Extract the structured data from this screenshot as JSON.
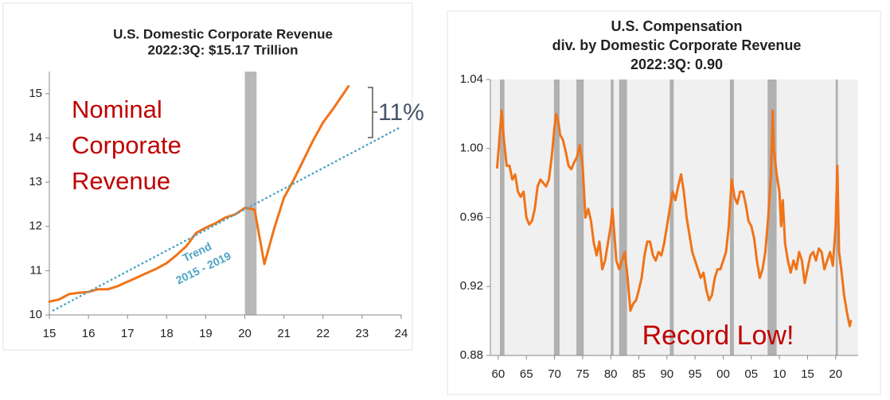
{
  "chart_data": [
    {
      "type": "line",
      "title": [
        "U.S. Domestic Corporate Revenue",
        "2022:3Q:  $15.17  Trillion"
      ],
      "annotations": [
        {
          "lines": [
            "Nominal",
            "Corporate",
            "Revenue"
          ]
        },
        {
          "lines": [
            "11%"
          ]
        },
        {
          "lines": [
            "Trend",
            "2015 - 2019"
          ]
        }
      ],
      "xlim": [
        15,
        24
      ],
      "xticks": [
        15,
        16,
        17,
        18,
        19,
        20,
        21,
        22,
        23,
        24
      ],
      "ylim": [
        10,
        15.5
      ],
      "yticks": [
        10,
        11,
        12,
        13,
        14,
        15
      ],
      "shading": [
        [
          20.0,
          20.3
        ]
      ],
      "shading_color": "#b8b8b8",
      "series": [
        {
          "color": "#f07318",
          "style": "solid",
          "x": [
            15,
            15.25,
            15.5,
            15.75,
            16,
            16.25,
            16.5,
            16.75,
            17,
            17.25,
            17.5,
            17.75,
            18,
            18.25,
            18.5,
            18.75,
            19,
            19.25,
            19.5,
            19.75,
            20,
            20.25,
            20.5,
            20.75,
            21,
            21.25,
            21.5,
            21.75,
            22,
            22.25,
            22.5,
            22.65
          ],
          "values": [
            10.3,
            10.35,
            10.47,
            10.5,
            10.52,
            10.58,
            10.58,
            10.65,
            10.75,
            10.85,
            10.95,
            11.05,
            11.17,
            11.35,
            11.55,
            11.85,
            11.97,
            12.07,
            12.2,
            12.27,
            12.42,
            12.38,
            11.15,
            11.95,
            12.65,
            13.05,
            13.5,
            13.95,
            14.35,
            14.65,
            14.97,
            15.17
          ]
        },
        {
          "color": "#4ba3c3",
          "style": "dotted",
          "x": [
            15.1,
            24
          ],
          "values": [
            10.1,
            14.25
          ]
        }
      ]
    },
    {
      "type": "line",
      "title": [
        "U.S. Compensation",
        "div. by Domestic Corporate Revenue",
        "2022:3Q: 0.90"
      ],
      "annotations": [
        {
          "lines": [
            "Record Low!"
          ]
        }
      ],
      "background": "#f0f0f0",
      "xlim": [
        1958.6,
        2024
      ],
      "xticks": [
        {
          "value": 1960,
          "label": "60"
        },
        {
          "value": 1965,
          "label": "65"
        },
        {
          "value": 1970,
          "label": "70"
        },
        {
          "value": 1975,
          "label": "75"
        },
        {
          "value": 1980,
          "label": "80"
        },
        {
          "value": 1985,
          "label": "85"
        },
        {
          "value": 1990,
          "label": "90"
        },
        {
          "value": 1995,
          "label": "95"
        },
        {
          "value": 2000,
          "label": "00"
        },
        {
          "value": 2005,
          "label": "05"
        },
        {
          "value": 2010,
          "label": "10"
        },
        {
          "value": 2015,
          "label": "15"
        },
        {
          "value": 2020,
          "label": "20"
        }
      ],
      "ylim": [
        0.88,
        1.04
      ],
      "yticks": [
        0.88,
        0.92,
        0.96,
        {
          "value": 1.0,
          "label": "1.00"
        },
        1.04
      ],
      "shading": [
        [
          1960.3,
          1961.1
        ],
        [
          1969.9,
          1970.9
        ],
        [
          1973.9,
          1975.2
        ],
        [
          1980.0,
          1980.5
        ],
        [
          1981.5,
          1982.9
        ],
        [
          1990.5,
          1991.2
        ],
        [
          2001.2,
          2001.9
        ],
        [
          2007.9,
          2009.5
        ],
        [
          2020.0,
          2020.4
        ]
      ],
      "shading_color": "#b0b0b0",
      "series": [
        {
          "color": "#f07318",
          "style": "solid",
          "x": [
            1959.8,
            1960.2,
            1960.6,
            1961,
            1961.5,
            1962,
            1962.5,
            1963,
            1963.5,
            1964,
            1964.5,
            1965,
            1965.5,
            1966,
            1966.5,
            1967,
            1967.5,
            1968,
            1968.5,
            1969,
            1969.5,
            1970,
            1970.3,
            1970.7,
            1971,
            1971.5,
            1972,
            1972.5,
            1973,
            1973.5,
            1974,
            1974.5,
            1975,
            1975.5,
            1976,
            1976.5,
            1977,
            1977.5,
            1978,
            1978.5,
            1979,
            1979.5,
            1980,
            1980.3,
            1980.7,
            1981,
            1981.5,
            1982,
            1982.5,
            1983,
            1983.5,
            1984,
            1984.5,
            1985,
            1985.5,
            1986,
            1986.5,
            1987,
            1987.5,
            1988,
            1988.5,
            1989,
            1989.5,
            1990,
            1990.5,
            1991,
            1991.5,
            1992,
            1992.5,
            1993,
            1993.5,
            1994,
            1994.5,
            1995,
            1995.5,
            1996,
            1996.5,
            1997,
            1997.5,
            1998,
            1998.5,
            1999,
            1999.5,
            2000,
            2000.5,
            2001,
            2001.5,
            2002,
            2002.5,
            2003,
            2003.5,
            2004,
            2004.5,
            2005,
            2005.5,
            2006,
            2006.5,
            2007,
            2007.5,
            2008,
            2008.5,
            2008.8,
            2009,
            2009.5,
            2010,
            2010.3,
            2010.6,
            2011,
            2011.5,
            2012,
            2012.5,
            2013,
            2013.5,
            2014,
            2014.5,
            2015,
            2015.5,
            2016,
            2016.5,
            2017,
            2017.5,
            2018,
            2018.5,
            2019,
            2019.5,
            2020,
            2020.3,
            2020.6,
            2021,
            2021.5,
            2022,
            2022.5,
            2022.7
          ],
          "values": [
            0.989,
            1.005,
            1.022,
            1.005,
            0.99,
            0.99,
            0.982,
            0.985,
            0.975,
            0.972,
            0.975,
            0.96,
            0.956,
            0.958,
            0.965,
            0.978,
            0.982,
            0.98,
            0.978,
            0.982,
            0.995,
            1.012,
            1.02,
            1.015,
            1.008,
            1.005,
            0.998,
            0.99,
            0.988,
            0.992,
            0.995,
            1.002,
            0.99,
            0.96,
            0.965,
            0.958,
            0.945,
            0.938,
            0.946,
            0.93,
            0.935,
            0.945,
            0.955,
            0.965,
            0.948,
            0.935,
            0.93,
            0.935,
            0.94,
            0.925,
            0.906,
            0.91,
            0.912,
            0.918,
            0.925,
            0.938,
            0.946,
            0.946,
            0.938,
            0.935,
            0.94,
            0.938,
            0.945,
            0.955,
            0.965,
            0.975,
            0.97,
            0.978,
            0.985,
            0.975,
            0.96,
            0.95,
            0.94,
            0.935,
            0.93,
            0.925,
            0.928,
            0.918,
            0.912,
            0.915,
            0.925,
            0.93,
            0.93,
            0.935,
            0.94,
            0.955,
            0.982,
            0.972,
            0.968,
            0.975,
            0.975,
            0.968,
            0.958,
            0.955,
            0.948,
            0.935,
            0.925,
            0.93,
            0.94,
            0.96,
            0.985,
            1.022,
            1.0,
            0.985,
            0.975,
            0.955,
            0.97,
            0.945,
            0.935,
            0.928,
            0.935,
            0.93,
            0.94,
            0.935,
            0.922,
            0.93,
            0.938,
            0.94,
            0.935,
            0.942,
            0.94,
            0.93,
            0.935,
            0.94,
            0.932,
            0.955,
            0.99,
            0.94,
            0.93,
            0.915,
            0.905,
            0.897,
            0.9
          ]
        }
      ]
    }
  ]
}
